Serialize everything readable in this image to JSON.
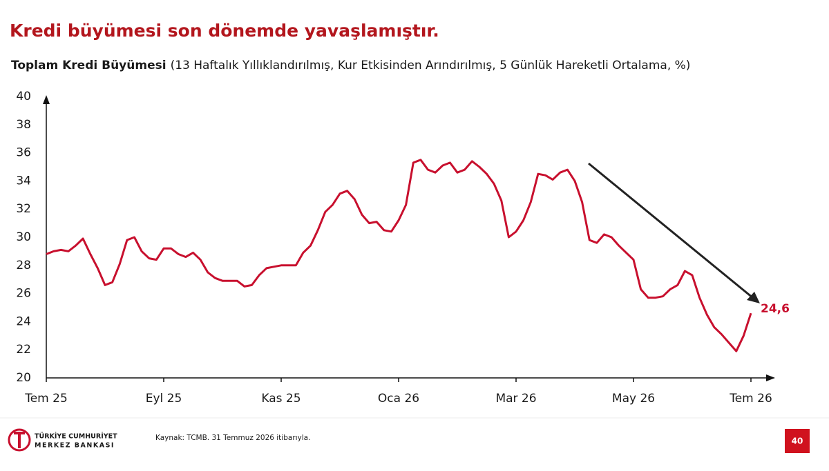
{
  "chart_data": {
    "type": "line",
    "title": "Kredi büyümesi son dönemde yavaşlamıştır.",
    "subtitle": [
      "Toplam Kredi Büyümesi",
      "(13 Haftalık Yıllıklandırılmış, Kur Etkisinden Arındırılmış, 5 Günlük Hareketli Ortalama, %)"
    ],
    "categories": [
      "Tem 25",
      null,
      null,
      null,
      null,
      null,
      null,
      null,
      null,
      null,
      null,
      null,
      null,
      null,
      null,
      null,
      "Eyl 25",
      null,
      null,
      null,
      null,
      null,
      null,
      null,
      null,
      null,
      null,
      null,
      null,
      null,
      null,
      null,
      "Kas 25",
      null,
      null,
      null,
      null,
      null,
      null,
      null,
      null,
      null,
      null,
      null,
      null,
      null,
      null,
      null,
      "Oca 26",
      null,
      null,
      null,
      null,
      null,
      null,
      null,
      null,
      null,
      null,
      null,
      null,
      null,
      null,
      null,
      "Mar 26",
      null,
      null,
      null,
      null,
      null,
      null,
      null,
      null,
      null,
      null,
      null,
      null,
      null,
      null,
      null,
      "May 26",
      null,
      null,
      null,
      null,
      null,
      null,
      null,
      null,
      null,
      null,
      null,
      null,
      null,
      null,
      null,
      "Tem 26"
    ],
    "series": [
      {
        "name": "Toplam Kredi Büyümesi",
        "color": "#c8102e",
        "values": [
          28.8,
          29.0,
          29.1,
          29.0,
          29.4,
          29.9,
          28.8,
          27.8,
          26.6,
          26.8,
          28.1,
          29.8,
          30.0,
          29.0,
          28.5,
          28.4,
          29.2,
          29.2,
          28.8,
          28.6,
          28.9,
          28.4,
          27.5,
          27.1,
          26.9,
          26.9,
          26.9,
          26.5,
          26.6,
          27.3,
          27.8,
          27.9,
          28.0,
          28.0,
          28.0,
          28.9,
          29.4,
          30.5,
          31.8,
          32.3,
          33.1,
          33.3,
          32.7,
          31.6,
          31.0,
          31.1,
          30.5,
          30.4,
          31.2,
          32.3,
          35.3,
          35.5,
          34.8,
          34.6,
          35.1,
          35.3,
          34.6,
          34.8,
          35.4,
          35.0,
          34.5,
          33.8,
          32.6,
          30.0,
          30.4,
          31.2,
          32.5,
          34.5,
          34.4,
          34.1,
          34.6,
          34.8,
          34.0,
          32.5,
          29.8,
          29.6,
          30.2,
          30.0,
          29.4,
          28.9,
          28.4,
          26.3,
          25.7,
          25.7,
          25.8,
          26.3,
          26.6,
          27.6,
          27.3,
          25.7,
          24.5,
          23.6,
          23.1,
          22.5,
          21.9,
          23.0,
          24.6
        ],
        "value_labels": [
          null,
          null,
          null,
          null,
          null,
          null,
          null,
          null,
          null,
          null,
          null,
          null,
          null,
          null,
          null,
          null,
          null,
          null,
          null,
          null,
          null,
          null,
          null,
          null,
          null,
          null,
          null,
          null,
          null,
          null,
          null,
          null,
          null,
          null,
          null,
          null,
          null,
          null,
          null,
          null,
          null,
          null,
          null,
          null,
          null,
          null,
          null,
          null,
          null,
          null,
          null,
          null,
          null,
          null,
          null,
          null,
          null,
          null,
          null,
          null,
          null,
          null,
          null,
          null,
          null,
          null,
          null,
          null,
          null,
          null,
          null,
          null,
          null,
          null,
          null,
          null,
          null,
          null,
          null,
          null,
          null,
          null,
          null,
          null,
          null,
          null,
          null,
          null,
          null,
          null,
          null,
          null,
          null,
          null,
          null,
          null,
          "24,6"
        ]
      }
    ],
    "ylim": [
      20,
      40
    ],
    "yticks": [
      20,
      22,
      24,
      26,
      28,
      30,
      32,
      34,
      36,
      38,
      40
    ],
    "grid": false
  },
  "footer": {
    "logo": [
      "TÜRKİYE CUMHURİYET",
      "MERKEZ BANKASI"
    ],
    "source": "Kaynak: TCMB. 31 Temmuz 2026 itibarıyla.",
    "page": "40"
  }
}
